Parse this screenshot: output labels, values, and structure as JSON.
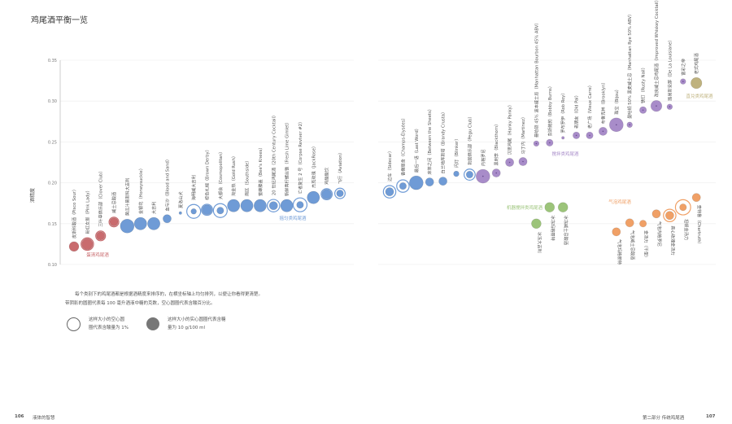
{
  "page": {
    "title": "鸡尾酒平衡一览",
    "note_line1": "每个类别下的鸡尾酒都是根据酒精度来排序的，在横坐标轴上均匀排列，以便让你看得更清楚。",
    "note_line2": "带阴影的圆圈代表每 100 毫升酒液中糖的克数，空心圆圈代表含酸百分比。",
    "legend_hollow": [
      "这样大小的空心圆",
      "圈代表含酸量为 1%"
    ],
    "legend_filled": [
      "这样大小的实心圆圈代表含糖",
      "量为 10 g/100 ml"
    ],
    "footer_left_page": "106",
    "footer_left_text": "液体的智慧",
    "footer_right_text": "第二部分  传统鸡尾酒",
    "footer_right_page": "107"
  },
  "chart_data": {
    "type": "scatter",
    "title": "鸡尾酒平衡一览",
    "xlabel": "",
    "ylabel": "酒精度",
    "ylim": [
      0.1,
      0.35
    ],
    "yticks": [
      "0.10",
      "0.15",
      "0.20",
      "0.25",
      "0.30",
      "0.35"
    ],
    "grid": true,
    "size_encoding": "filled circle = sugar g/100 ml; hollow ring = acid %",
    "series": [
      {
        "name": "蛋清鸡尾酒",
        "color": "#c96b6e",
        "points": [
          {
            "label": "皮斯科酸酒（Pisco Sour）",
            "abv": 0.122,
            "sugar": 7,
            "acid": 0
          },
          {
            "label": "粉红女郎（Pink Lady）",
            "abv": 0.125,
            "sugar": 8,
            "acid": 0.9
          },
          {
            "label": "三叶草俱乐部（Clover Club）",
            "abv": 0.135,
            "sugar": 6,
            "acid": 0.7
          },
          {
            "label": "威士忌酸酒",
            "abv": 0.152,
            "sugar": 6,
            "acid": 0.7
          }
        ]
      },
      {
        "name": "摇匀类鸡尾酒",
        "color": "#6f9bd6",
        "points": [
          {
            "label": "黄瓜汁莫斯科大吉利",
            "abv": 0.147,
            "sugar": 10,
            "acid": 0
          },
          {
            "label": "金银花（Honeysuckle）",
            "abv": 0.15,
            "sugar": 9,
            "acid": 0
          },
          {
            "label": "大吉利",
            "abv": 0.15,
            "sugar": 9,
            "acid": 0
          },
          {
            "label": "血与沙（Blood and Sand）",
            "abv": 0.156,
            "sugar": 6,
            "acid": 0
          },
          {
            "label": "夏洛山犬",
            "abv": 0.163,
            "sugar": 2,
            "acid": 0
          },
          {
            "label": "海明威大吉利",
            "abv": 0.165,
            "sugar": 4,
            "acid": 1.0
          },
          {
            "label": "棕色礼帽（Brown Derby）",
            "abv": 0.167,
            "sugar": 7,
            "acid": 0.8
          },
          {
            "label": "大都会（Cosmopolitan）",
            "abv": 0.166,
            "sugar": 5,
            "acid": 1.0
          },
          {
            "label": "淘金热（Gold Rush）",
            "abv": 0.172,
            "sugar": 9,
            "acid": 0
          },
          {
            "label": "南区（Southside）",
            "abv": 0.172,
            "sugar": 9,
            "acid": 0
          },
          {
            "label": "蜜蜂膝盖（Bee's Knees）",
            "abv": 0.172,
            "sugar": 9,
            "acid": 0
          },
          {
            "label": "20 世纪鸡尾酒（20th Century Cocktail）",
            "abv": 0.172,
            "sugar": 6,
            "acid": 0.9
          },
          {
            "label": "新鲜青柠螺丝锥（Fresh Lime Gimlet）",
            "abv": 0.172,
            "sugar": 9,
            "acid": 0
          },
          {
            "label": "亡者复生 2 号（Corpse Reviver #2）",
            "abv": 0.173,
            "sugar": 5,
            "acid": 1.0
          },
          {
            "label": "杰克玫瑰（JackRose）",
            "abv": 0.182,
            "sugar": 9,
            "acid": 0
          },
          {
            "label": "鸡酸酸饮",
            "abv": 0.186,
            "sugar": 7,
            "acid": 0.8
          },
          {
            "label": "飞行（Aviation）",
            "abv": 0.187,
            "sugar": 5,
            "acid": 0.75
          },
          {
            "label": "边车（Sidecar）",
            "abv": 0.189,
            "sugar": 6,
            "acid": 0.9
          },
          {
            "label": "香榭丽舍（Champs-Élysées）",
            "abv": 0.196,
            "sugar": 5,
            "acid": 0.9
          },
          {
            "label": "最后一语（Last Word）",
            "abv": 0.2,
            "sugar": 10,
            "acid": 0
          },
          {
            "label": "床笫之间（Between the Sheets）",
            "abv": 0.201,
            "sugar": 6,
            "acid": 0
          },
          {
            "label": "白兰地库斯塔（Brandy Crusta）",
            "abv": 0.202,
            "sugar": 6,
            "acid": 0
          },
          {
            "label": "闪灯（Blinker）",
            "abv": 0.211,
            "sugar": 4,
            "acid": 0
          },
          {
            "label": "勃固俱乐部（Pegu Club）",
            "abv": 0.21,
            "sugar": 5,
            "acid": 0.8
          }
        ]
      },
      {
        "name": "搅拌类鸡尾酒",
        "color": "#a88cc9",
        "points": [
          {
            "label": "内格罗尼",
            "abv": 0.208,
            "sugar": 10,
            "acid": 0
          },
          {
            "label": "黑刺李（Blackthorn）",
            "abv": 0.212,
            "sugar": 6,
            "acid": 0
          },
          {
            "label": "沉思鸡尾（Hanky Panky）",
            "abv": 0.225,
            "sugar": 6,
            "acid": 0
          },
          {
            "label": "马丁内（Martinez）",
            "abv": 0.226,
            "sugar": 6,
            "acid": 0
          },
          {
            "label": "曼哈顿 45% 波本威士忌（Manhattan Bourbon 45% ABV）",
            "abv": 0.248,
            "sugar": 4,
            "acid": 0
          },
          {
            "label": "彭斯鲍勃（Bobby Burns）",
            "abv": 0.249,
            "sugar": 5,
            "acid": 0
          },
          {
            "label": "罗布罗伊（Rob Roy）",
            "abv": 0.255,
            "sugar": 2,
            "acid": 0
          },
          {
            "label": "老朋友（Old Pal）",
            "abv": 0.258,
            "sugar": 5,
            "acid": 0
          },
          {
            "label": "老广场（Vieux Carre）",
            "abv": 0.258,
            "sugar": 5,
            "acid": 0
          },
          {
            "label": "布鲁克林（Brooklyn）",
            "abv": 0.263,
            "sugar": 6,
            "acid": 0
          },
          {
            "label": "珠宝（Bijou）",
            "abv": 0.271,
            "sugar": 10,
            "acid": 0
          },
          {
            "label": "曼哈顿 50% 黑麦威士忌（Manhattan Rye 50% ABV）",
            "abv": 0.271,
            "sugar": 4,
            "acid": 0
          },
          {
            "label": "锈钉（Rusty Nail）",
            "abv": 0.289,
            "sugar": 5,
            "acid": 0
          },
          {
            "label": "改良威士忌鸡尾酒（Improved Whiskey Cocktail）",
            "abv": 0.294,
            "sugar": 8,
            "acid": 0
          },
          {
            "label": "路易斯安那（De La Louisiane）",
            "abv": 0.293,
            "sugar": 4,
            "acid": 0
          },
          {
            "label": "富彩之帝",
            "abv": 0.324,
            "sugar": 4,
            "acid": 0
          }
        ]
      },
      {
        "name": "直兑类鸡尾酒",
        "color": "#bfb27e",
        "points": [
          {
            "label": "老式鸡尾酒",
            "abv": 0.322,
            "sugar": 8,
            "acid": 0
          }
        ]
      },
      {
        "name": "机器搅拌类鸡尾酒",
        "color": "#9cc47a",
        "points": [
          {
            "label": "冰冻大吉利",
            "abv": 0.15,
            "sugar": 7,
            "acid": 0
          },
          {
            "label": "冰冻玛格丽特",
            "abv": 0.17,
            "sugar": 7,
            "acid": 0
          },
          {
            "label": "冰冻威士忌酸酒",
            "abv": 0.17,
            "sugar": 7,
            "acid": 0
          }
        ]
      },
      {
        "name": "气泡鸡尾酒",
        "color": "#f0a066",
        "points": [
          {
            "label": "气泡玛格丽特",
            "abv": 0.14,
            "sugar": 6,
            "acid": 0
          },
          {
            "label": "气泡威士忌酸酒",
            "abv": 0.151,
            "sugar": 6,
            "acid": 0
          },
          {
            "label": "金汤力（干型）",
            "abv": 0.15,
            "sugar": 5,
            "acid": 0
          },
          {
            "label": "气泡内格罗尼",
            "abv": 0.162,
            "sugar": 6,
            "acid": 0
          },
          {
            "label": "真心玫瑰金汤力",
            "abv": 0.16,
            "sugar": 6,
            "acid": 0.9
          },
          {
            "label": "坦顿金汤力",
            "abv": 0.17,
            "sugar": 5,
            "acid": 1.1
          },
          {
            "label": "查特鲁（Chartruth）",
            "abv": 0.182,
            "sugar": 6,
            "acid": 0
          }
        ]
      }
    ]
  }
}
